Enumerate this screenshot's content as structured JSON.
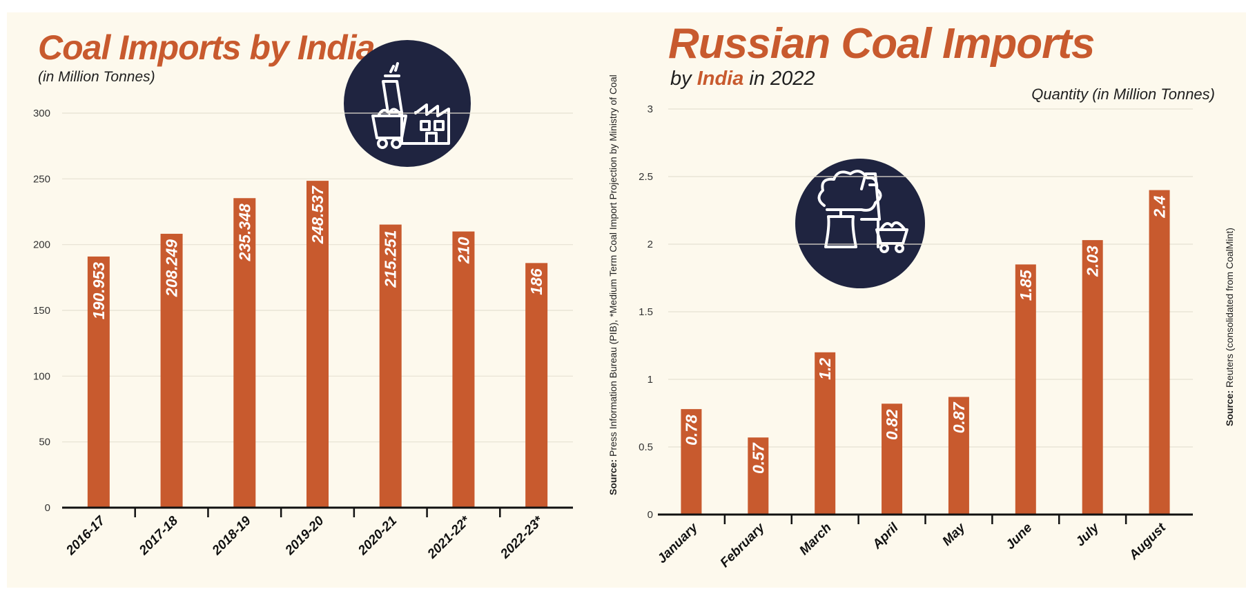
{
  "colors": {
    "bar": "#c85a2e",
    "title": "#c85a2e",
    "icon_circle": "#1f2440",
    "panel_bg": "#fdf9ed",
    "axis": "#111111",
    "grid": "#e6e1d3"
  },
  "left": {
    "title": "Coal Imports by India",
    "subtitle": "(in Million Tonnes)",
    "source_label": "Source:",
    "source_text": "Press Information Bureau (PIB), *Medium Term Coal Import Projection by Ministry of Coal",
    "icon": "coal-cart-factory-icon"
  },
  "right": {
    "title": "Russian Coal Imports",
    "subtitle_pre": "by ",
    "subtitle_highlight": "India",
    "subtitle_post": " in 2022",
    "unit_label": "Quantity (in Million Tonnes)",
    "source_label": "Source:",
    "source_text": "Reuters (consolidated from CoalMint)",
    "icon": "power-plant-coal-icon"
  },
  "chart_data": [
    {
      "type": "bar",
      "title": "Coal Imports by India",
      "subtitle": "(in Million Tonnes)",
      "categories": [
        "2016-17",
        "2017-18",
        "2018-19",
        "2019-20",
        "2020-21",
        "2021-22*",
        "2022-23*"
      ],
      "values": [
        190.953,
        208.249,
        235.348,
        248.537,
        215.251,
        210,
        186
      ],
      "value_labels": [
        "190.953",
        "208.249",
        "235.348",
        "248.537",
        "215.251",
        "210",
        "186"
      ],
      "ylim": [
        0,
        300
      ],
      "yticks": [
        0,
        50,
        100,
        150,
        200,
        250,
        300
      ],
      "ytick_labels": [
        "0",
        "50",
        "100",
        "150",
        "200",
        "250",
        "300"
      ],
      "grid": true
    },
    {
      "type": "bar",
      "title": "Russian Coal Imports",
      "subtitle": "by India in 2022",
      "ylabel": "Quantity (in Million Tonnes)",
      "categories": [
        "January",
        "February",
        "March",
        "April",
        "May",
        "June",
        "July",
        "August"
      ],
      "values": [
        0.78,
        0.57,
        1.2,
        0.82,
        0.87,
        1.85,
        2.03,
        2.4
      ],
      "value_labels": [
        "0.78",
        "0.57",
        "1.2",
        "0.82",
        "0.87",
        "1.85",
        "2.03",
        "2.4"
      ],
      "ylim": [
        0,
        3
      ],
      "yticks": [
        0,
        0.5,
        1,
        1.5,
        2,
        2.5,
        3
      ],
      "ytick_labels": [
        "0",
        "0.5",
        "1",
        "1.5",
        "2",
        "2.5",
        "3"
      ],
      "grid": true
    }
  ]
}
